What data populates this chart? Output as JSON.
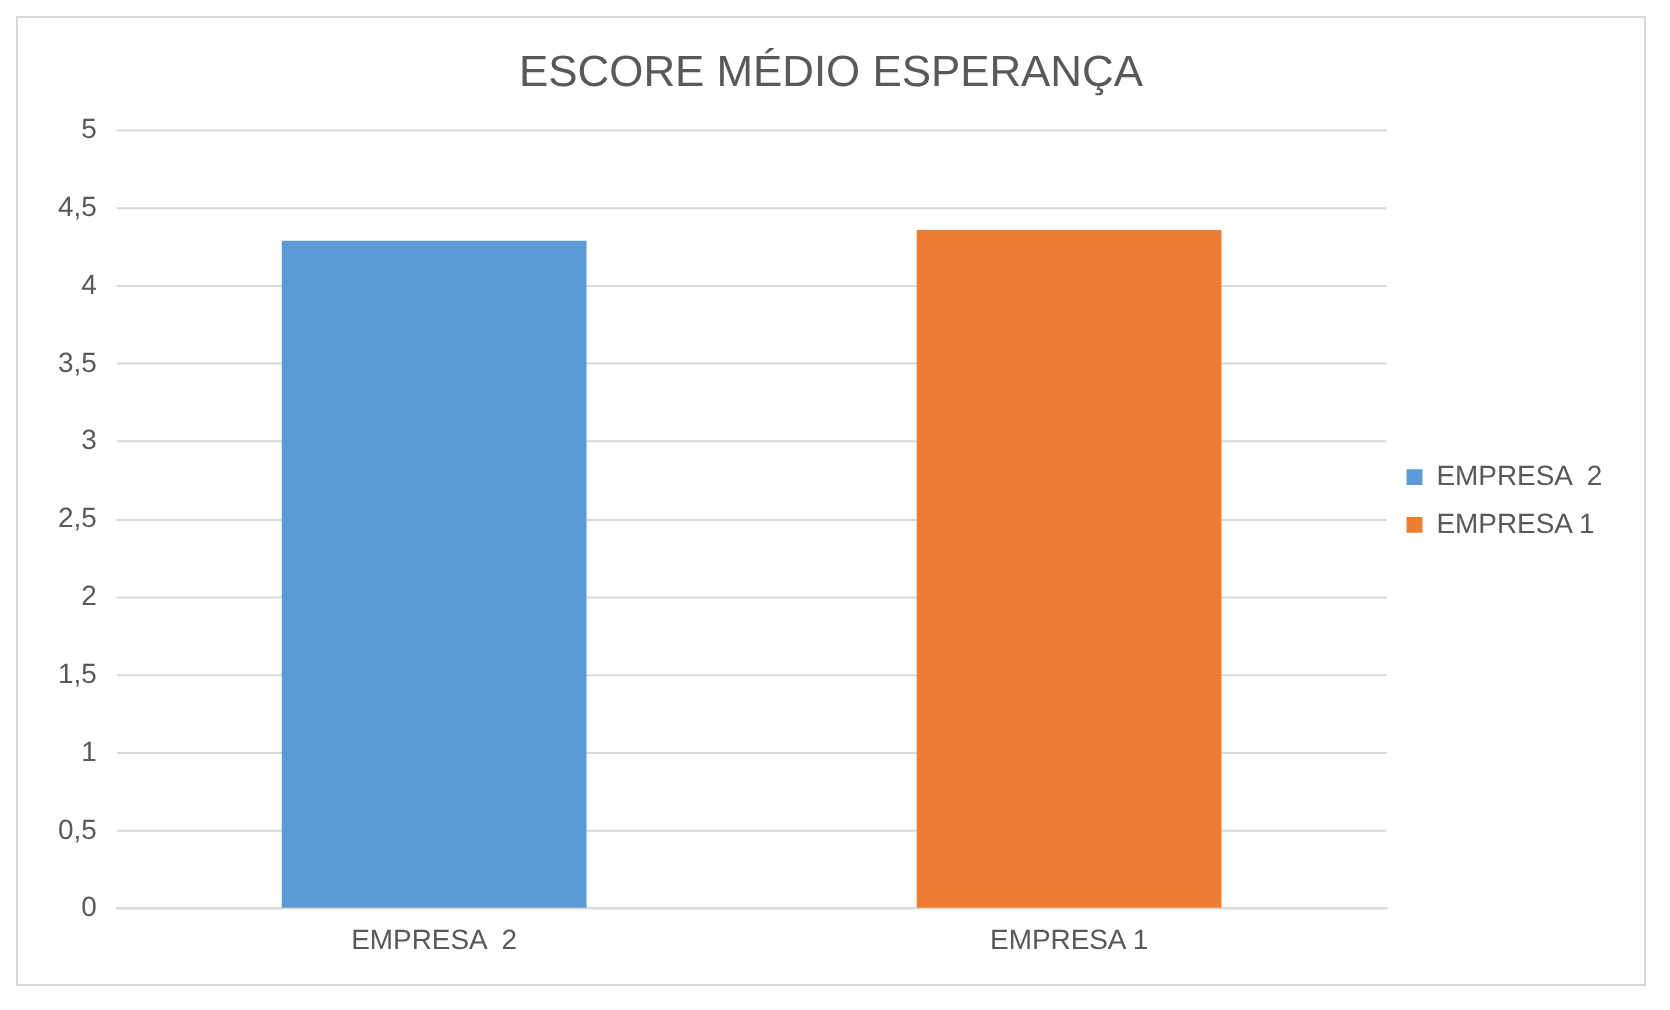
{
  "chart_data": {
    "type": "bar",
    "title": "ESCORE MÉDIO ESPERANÇA",
    "categories": [
      "EMPRESA  2",
      "EMPRESA 1"
    ],
    "series": [
      {
        "name": "EMPRESA  2",
        "color": "#5b9bd5",
        "values": [
          4.29,
          null
        ]
      },
      {
        "name": "EMPRESA 1",
        "color": "#ed7d31",
        "values": [
          null,
          4.36
        ]
      }
    ],
    "ylim": [
      0,
      5
    ],
    "yticks": [
      0,
      {
        "value": 0.5,
        "label": "0,5"
      },
      1,
      {
        "value": 1.5,
        "label": "1,5"
      },
      2,
      {
        "value": 2.5,
        "label": "2,5"
      },
      3,
      {
        "value": 3.5,
        "label": "3,5"
      },
      4,
      {
        "value": 4.5,
        "label": "4,5"
      },
      5
    ],
    "grid": "y",
    "legend": "right"
  }
}
